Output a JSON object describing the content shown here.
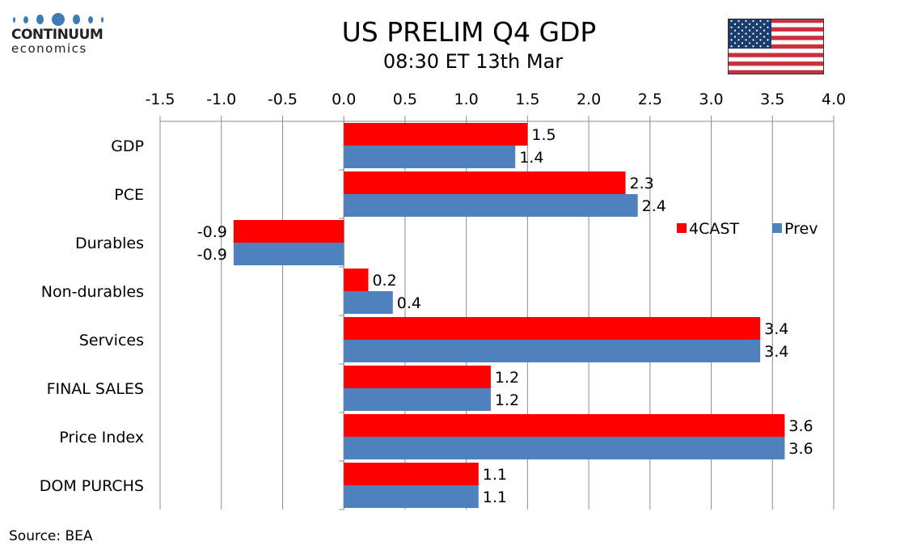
{
  "logo": {
    "line1": "CONTINUUM",
    "line2": "economics",
    "color": "#3c7bb4"
  },
  "header": {
    "title": "US PRELIM Q4 GDP",
    "subtitle": "08:30 ET 13th Mar",
    "flag_icon": "us-flag-icon"
  },
  "footer": {
    "source": "Source: BEA"
  },
  "chart_data": {
    "type": "bar",
    "orientation": "horizontal",
    "title": "US PRELIM Q4 GDP",
    "subtitle": "08:30 ET 13th Mar",
    "categories": [
      "GDP",
      "PCE",
      "Durables",
      "Non-durables",
      "Services",
      "FINAL SALES",
      "Price Index",
      "DOM PURCHS"
    ],
    "series": [
      {
        "name": "4CAST",
        "color": "#ff0000",
        "values": [
          1.5,
          2.3,
          -0.9,
          0.2,
          3.4,
          1.2,
          3.6,
          1.1
        ],
        "labels": [
          "1.5",
          "2.3",
          "-0.9",
          "0.2",
          "3.4",
          "1.2",
          "3.6",
          "1.1"
        ]
      },
      {
        "name": "Prev",
        "color": "#4f81bd",
        "values": [
          1.4,
          2.4,
          -0.9,
          0.4,
          3.4,
          1.2,
          3.6,
          1.1
        ],
        "labels": [
          "1.4",
          "2.4",
          "-0.9",
          "0.4",
          "3.4",
          "1.2",
          "3.6",
          "1.1"
        ]
      }
    ],
    "xlim": [
      -1.5,
      4.0
    ],
    "xticks": [
      -1.5,
      -1.0,
      -0.5,
      0.0,
      0.5,
      1.0,
      1.5,
      2.0,
      2.5,
      3.0,
      3.5,
      4.0
    ],
    "xtick_labels": [
      "-1.5",
      "-1.0",
      "-0.5",
      "0.0",
      "0.5",
      "1.0",
      "1.5",
      "2.0",
      "2.5",
      "3.0",
      "3.5",
      "4.0"
    ],
    "x_axis_position": "top",
    "xlabel": "",
    "ylabel": "",
    "grid": "vertical",
    "legend": {
      "position": "right-middle",
      "entries": [
        "4CAST",
        "Prev"
      ]
    },
    "source": "Source: BEA"
  }
}
